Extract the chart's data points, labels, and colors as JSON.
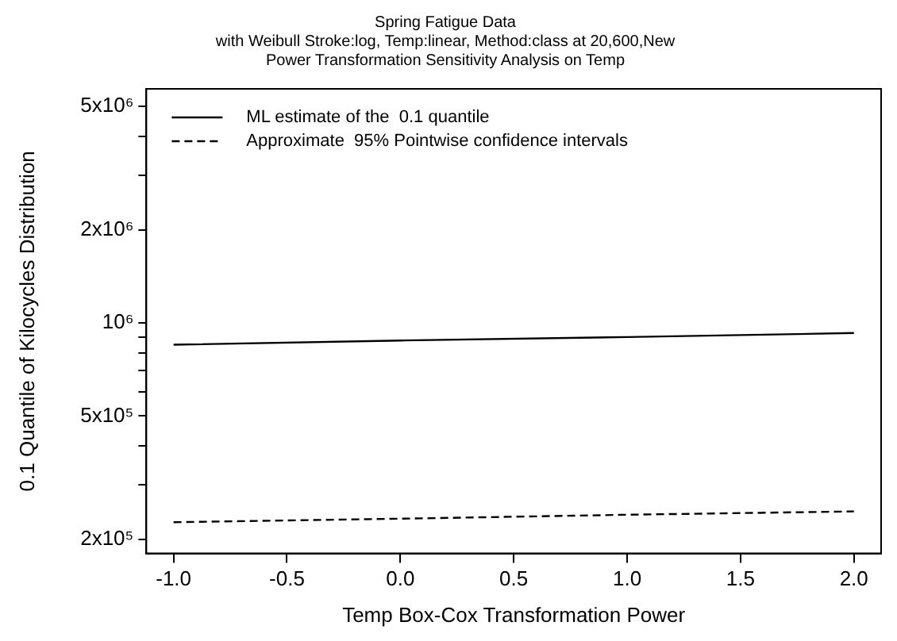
{
  "chart_data": {
    "type": "line",
    "title": "Spring Fatigue Data",
    "subtitle": "with Weibull Stroke:log, Temp:linear, Method:class at 20,600,New\nPower Transformation Sensitivity Analysis on Temp",
    "xlabel": "Temp Box-Cox Transformation Power",
    "ylabel": "0.1 Quantile of Kilocycles Distribution",
    "x": [
      -1.0,
      0.0,
      1.0,
      2.0
    ],
    "series": [
      {
        "name": "ML estimate of the  0.1 quantile",
        "color": "#000000",
        "values": [
          850000,
          877000,
          900000,
          927000
        ],
        "line_style": "solid"
      },
      {
        "name": "Approximate  95% Pointwise confidence intervals",
        "color": "#000000",
        "values": [
          227000,
          233000,
          240000,
          246000
        ],
        "line_style": "dashed"
      }
    ],
    "log": "y",
    "xlim": [
      -1.12,
      2.12
    ],
    "xticks": [
      {
        "value": -1.0,
        "label": "-1.0"
      },
      {
        "value": -0.5,
        "label": "-0.5"
      },
      {
        "value": 0.0,
        "label": "0.0"
      },
      {
        "value": 0.5,
        "label": "0.5"
      },
      {
        "value": 1.0,
        "label": "1.0"
      },
      {
        "value": 1.5,
        "label": "1.5"
      },
      {
        "value": 2.0,
        "label": "2.0"
      }
    ],
    "ylim": [
      180000,
      5700000
    ],
    "yticks": [
      {
        "value": 200000,
        "label": "2x10⁵"
      },
      {
        "value": 300000,
        "label": null
      },
      {
        "value": 400000,
        "label": null
      },
      {
        "value": 500000,
        "label": "5x10⁵"
      },
      {
        "value": 600000,
        "label": null
      },
      {
        "value": 700000,
        "label": null
      },
      {
        "value": 800000,
        "label": null
      },
      {
        "value": 900000,
        "label": null
      },
      {
        "value": 1000000,
        "label": "10⁶"
      },
      {
        "value": 2000000,
        "label": "2x10⁶"
      },
      {
        "value": 3000000,
        "label": null
      },
      {
        "value": 4000000,
        "label": null
      },
      {
        "value": 5000000,
        "label": "5x10⁶"
      }
    ],
    "grid": false,
    "legend": "top left",
    "marker": "none"
  }
}
